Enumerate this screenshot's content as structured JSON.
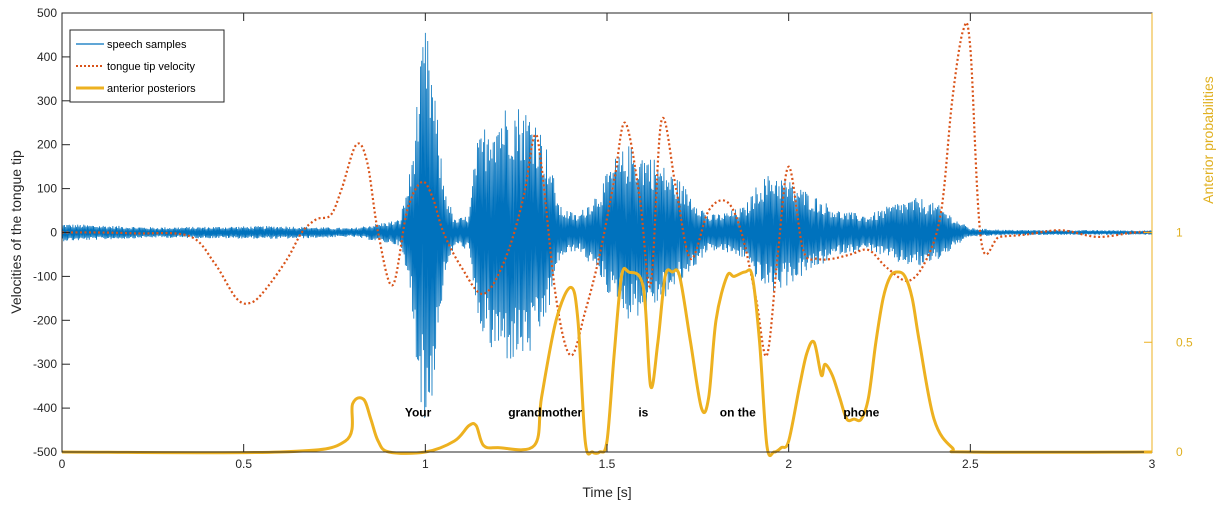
{
  "chart_data": {
    "type": "line",
    "xlabel": "Time [s]",
    "ylabel": "Velocities of the tongue tip",
    "y2label": "Anterior probabilities",
    "xlim": [
      0,
      3
    ],
    "ylim": [
      -500,
      500
    ],
    "y2lim": [
      0,
      2
    ],
    "xticks": [
      0,
      0.5,
      1,
      1.5,
      2,
      2.5,
      3
    ],
    "yticks": [
      -500,
      -400,
      -300,
      -200,
      -100,
      0,
      100,
      200,
      300,
      400,
      500
    ],
    "y2ticks": [
      0,
      0.5,
      1
    ],
    "grid": false,
    "legend_position": "top-left",
    "colors": {
      "speech": "#0072bd",
      "velocity": "#d95319",
      "posterior": "#edb120",
      "axis": "#262626"
    },
    "series": [
      {
        "name": "speech samples",
        "axis": "left",
        "style": "solid-thin",
        "envelope": [
          [
            0,
            20
          ],
          [
            0.25,
            12
          ],
          [
            0.6,
            15
          ],
          [
            0.8,
            10
          ],
          [
            0.93,
            30
          ],
          [
            0.96,
            150
          ],
          [
            0.98,
            330
          ],
          [
            1.0,
            480
          ],
          [
            1.02,
            370
          ],
          [
            1.05,
            120
          ],
          [
            1.08,
            30
          ],
          [
            1.12,
            40
          ],
          [
            1.14,
            200
          ],
          [
            1.18,
            280
          ],
          [
            1.24,
            300
          ],
          [
            1.3,
            280
          ],
          [
            1.34,
            180
          ],
          [
            1.37,
            60
          ],
          [
            1.42,
            40
          ],
          [
            1.48,
            100
          ],
          [
            1.52,
            170
          ],
          [
            1.56,
            200
          ],
          [
            1.62,
            180
          ],
          [
            1.66,
            150
          ],
          [
            1.7,
            120
          ],
          [
            1.74,
            80
          ],
          [
            1.78,
            40
          ],
          [
            1.82,
            45
          ],
          [
            1.88,
            60
          ],
          [
            1.92,
            120
          ],
          [
            1.96,
            140
          ],
          [
            2.0,
            120
          ],
          [
            2.04,
            100
          ],
          [
            2.08,
            80
          ],
          [
            2.14,
            50
          ],
          [
            2.22,
            40
          ],
          [
            2.3,
            70
          ],
          [
            2.36,
            80
          ],
          [
            2.42,
            60
          ],
          [
            2.46,
            30
          ],
          [
            2.5,
            10
          ],
          [
            2.6,
            6
          ],
          [
            3.0,
            5
          ]
        ]
      },
      {
        "name": "tongue tip velocity",
        "axis": "left",
        "style": "dotted",
        "x": [
          0,
          0.1,
          0.2,
          0.35,
          0.42,
          0.48,
          0.52,
          0.56,
          0.62,
          0.66,
          0.7,
          0.74,
          0.77,
          0.81,
          0.84,
          0.87,
          0.91,
          0.95,
          0.99,
          1.02,
          1.05,
          1.1,
          1.16,
          1.22,
          1.27,
          1.3,
          1.32,
          1.36,
          1.4,
          1.44,
          1.48,
          1.52,
          1.55,
          1.59,
          1.62,
          1.65,
          1.69,
          1.73,
          1.78,
          1.83,
          1.87,
          1.91,
          1.94,
          1.97,
          2.0,
          2.04,
          2.08,
          2.12,
          2.17,
          2.22,
          2.27,
          2.33,
          2.38,
          2.42,
          2.45,
          2.48,
          2.5,
          2.53,
          2.58,
          2.65,
          2.75,
          2.85,
          2.95,
          3.0
        ],
        "y": [
          0,
          0,
          -2,
          -8,
          -70,
          -150,
          -160,
          -130,
          -60,
          0,
          30,
          40,
          100,
          200,
          160,
          0,
          -120,
          50,
          115,
          80,
          0,
          -80,
          -140,
          -60,
          80,
          220,
          150,
          -150,
          -280,
          -180,
          -50,
          120,
          250,
          80,
          -120,
          255,
          100,
          -60,
          50,
          70,
          0,
          -150,
          -280,
          -50,
          150,
          -40,
          -60,
          -60,
          -50,
          -40,
          -80,
          -110,
          -60,
          50,
          300,
          460,
          420,
          -20,
          -10,
          -5,
          5,
          -10,
          0,
          0
        ]
      },
      {
        "name": "anterior posteriors",
        "axis": "right",
        "style": "solid-thick",
        "x": [
          0,
          0.6,
          0.78,
          0.8,
          0.83,
          0.85,
          0.87,
          0.9,
          1.0,
          1.08,
          1.12,
          1.14,
          1.16,
          1.2,
          1.3,
          1.32,
          1.36,
          1.4,
          1.42,
          1.44,
          1.46,
          1.48,
          1.5,
          1.52,
          1.54,
          1.56,
          1.6,
          1.62,
          1.64,
          1.66,
          1.68,
          1.7,
          1.73,
          1.76,
          1.78,
          1.8,
          1.83,
          1.85,
          1.88,
          1.9,
          1.92,
          1.94,
          1.96,
          1.98,
          2.0,
          2.03,
          2.05,
          2.07,
          2.09,
          2.1,
          2.12,
          2.14,
          2.16,
          2.18,
          2.2,
          2.22,
          2.24,
          2.26,
          2.28,
          2.3,
          2.32,
          2.34,
          2.36,
          2.4,
          2.45,
          2.5,
          3.0
        ],
        "y": [
          0,
          0,
          0.05,
          0.22,
          0.24,
          0.15,
          0.05,
          0,
          0,
          0.05,
          0.12,
          0.12,
          0.03,
          0.02,
          0.03,
          0.25,
          0.6,
          0.75,
          0.6,
          0.05,
          0,
          0,
          0.05,
          0.45,
          0.8,
          0.82,
          0.75,
          0.3,
          0.5,
          0.8,
          0.82,
          0.8,
          0.5,
          0.2,
          0.25,
          0.6,
          0.8,
          0.8,
          0.82,
          0.8,
          0.5,
          0.03,
          0,
          0.02,
          0.05,
          0.3,
          0.45,
          0.5,
          0.35,
          0.4,
          0.35,
          0.25,
          0.15,
          0.15,
          0.15,
          0.25,
          0.5,
          0.7,
          0.8,
          0.82,
          0.8,
          0.7,
          0.5,
          0.15,
          0.02,
          0,
          0
        ]
      }
    ],
    "annotations": [
      {
        "text": "Your",
        "x": 0.98,
        "y": -410
      },
      {
        "text": "grandmother",
        "x": 1.33,
        "y": -410
      },
      {
        "text": "is",
        "x": 1.6,
        "y": -410
      },
      {
        "text": "on the",
        "x": 1.86,
        "y": -410
      },
      {
        "text": "phone",
        "x": 2.2,
        "y": -410
      }
    ]
  }
}
